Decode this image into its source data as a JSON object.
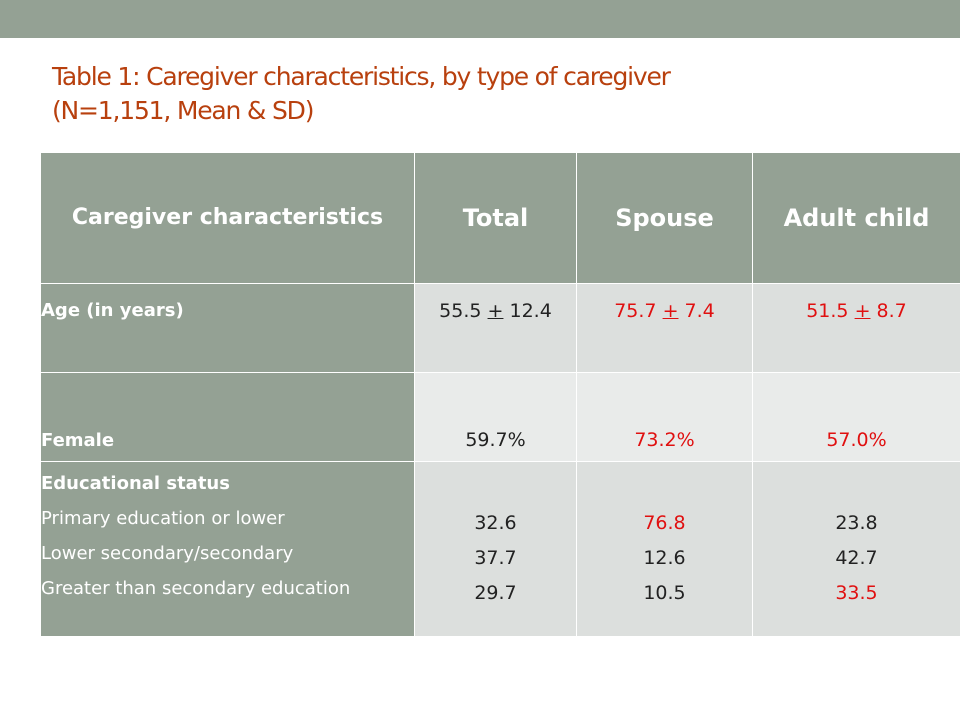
{
  "title": {
    "line1": "Table 1: Caregiver characteristics, by type of caregiver",
    "line2": "(N=1,151, Mean & SD)"
  },
  "table": {
    "headers": [
      "Caregiver characteristics",
      "Total",
      "Spouse",
      "Adult child"
    ],
    "rows": {
      "age": {
        "label": "Age (in years)",
        "total": {
          "mean": "55.5",
          "pm": "+",
          "sd": "12.4"
        },
        "spouse": {
          "mean": "75.7",
          "pm": "+",
          "sd": "7.4"
        },
        "adult_child": {
          "mean": "51.5",
          "pm": "+",
          "sd": "8.7"
        }
      },
      "female": {
        "label": "Female",
        "total": "59.7%",
        "spouse": "73.2%",
        "adult_child": "57.0%"
      },
      "education": {
        "label": "Educational status",
        "categories": [
          "Primary education or lower",
          "Lower secondary/secondary",
          "Greater than secondary education"
        ],
        "total": [
          "32.6",
          "37.7",
          "29.7"
        ],
        "spouse": [
          "76.8",
          "12.6",
          "10.5"
        ],
        "adult_child": [
          "23.8",
          "42.7",
          "33.5"
        ]
      }
    }
  },
  "colors": {
    "title": "#b8400e",
    "header_bg": "#94a194",
    "highlight_red": "#e01010"
  }
}
